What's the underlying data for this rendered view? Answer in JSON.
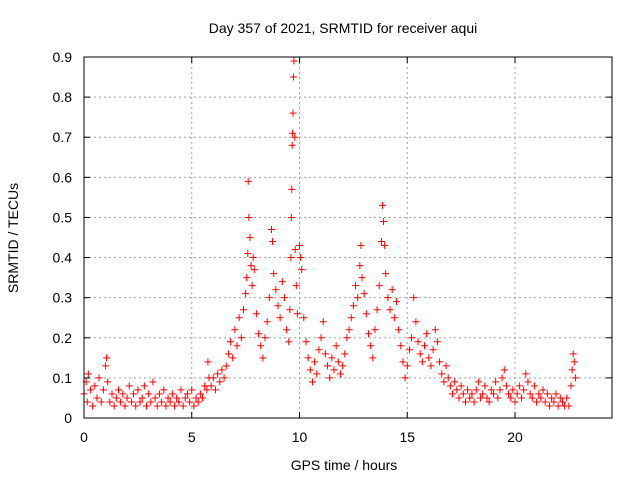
{
  "chart_data": {
    "type": "scatter",
    "title": "Day 357 of 2021, SRMTID for receiver aqui",
    "xlabel": "GPS time / hours",
    "ylabel": "SRMTID / TECUs",
    "xlim": [
      0,
      24.5
    ],
    "ylim": [
      0,
      0.9
    ],
    "xticks": [
      "0",
      "5",
      "10",
      "15",
      "20"
    ],
    "yticks": [
      "0",
      "0.1",
      "0.2",
      "0.3",
      "0.4",
      "0.5",
      "0.6",
      "0.7",
      "0.8",
      "0.9"
    ],
    "grid": true,
    "marker": "+",
    "marker_color": "#ff0000",
    "series": [
      {
        "name": "SRMTID",
        "points": [
          [
            0.0,
            0.06
          ],
          [
            0.1,
            0.09
          ],
          [
            0.15,
            0.04
          ],
          [
            0.2,
            0.11
          ],
          [
            0.3,
            0.07
          ],
          [
            0.4,
            0.03
          ],
          [
            0.5,
            0.08
          ],
          [
            0.6,
            0.05
          ],
          [
            0.7,
            0.1
          ],
          [
            0.8,
            0.04
          ],
          [
            0.9,
            0.07
          ],
          [
            1.0,
            0.13
          ],
          [
            1.05,
            0.15
          ],
          [
            1.1,
            0.09
          ],
          [
            1.2,
            0.04
          ],
          [
            1.3,
            0.06
          ],
          [
            1.4,
            0.03
          ],
          [
            1.5,
            0.05
          ],
          [
            1.6,
            0.07
          ],
          [
            1.7,
            0.04
          ],
          [
            1.8,
            0.06
          ],
          [
            1.9,
            0.03
          ],
          [
            2.0,
            0.05
          ],
          [
            2.1,
            0.08
          ],
          [
            2.2,
            0.04
          ],
          [
            2.3,
            0.06
          ],
          [
            2.4,
            0.03
          ],
          [
            2.5,
            0.07
          ],
          [
            2.6,
            0.04
          ],
          [
            2.7,
            0.05
          ],
          [
            2.8,
            0.08
          ],
          [
            2.9,
            0.03
          ],
          [
            3.0,
            0.06
          ],
          [
            3.1,
            0.04
          ],
          [
            3.2,
            0.09
          ],
          [
            3.3,
            0.05
          ],
          [
            3.4,
            0.03
          ],
          [
            3.5,
            0.06
          ],
          [
            3.6,
            0.04
          ],
          [
            3.7,
            0.07
          ],
          [
            3.8,
            0.03
          ],
          [
            3.9,
            0.05
          ],
          [
            4.0,
            0.04
          ],
          [
            4.1,
            0.06
          ],
          [
            4.2,
            0.03
          ],
          [
            4.3,
            0.05
          ],
          [
            4.4,
            0.04
          ],
          [
            4.5,
            0.07
          ],
          [
            4.6,
            0.03
          ],
          [
            4.7,
            0.05
          ],
          [
            4.8,
            0.06
          ],
          [
            4.9,
            0.04
          ],
          [
            5.0,
            0.07
          ],
          [
            5.1,
            0.03
          ],
          [
            5.2,
            0.05
          ],
          [
            5.3,
            0.04
          ],
          [
            5.4,
            0.06
          ],
          [
            5.5,
            0.05
          ],
          [
            5.6,
            0.08
          ],
          [
            5.7,
            0.07
          ],
          [
            5.75,
            0.14
          ],
          [
            5.8,
            0.1
          ],
          [
            5.9,
            0.08
          ],
          [
            6.0,
            0.1
          ],
          [
            6.1,
            0.07
          ],
          [
            6.2,
            0.11
          ],
          [
            6.3,
            0.09
          ],
          [
            6.4,
            0.12
          ],
          [
            6.5,
            0.1
          ],
          [
            6.6,
            0.13
          ],
          [
            6.7,
            0.16
          ],
          [
            6.8,
            0.19
          ],
          [
            6.9,
            0.15
          ],
          [
            7.0,
            0.22
          ],
          [
            7.1,
            0.18
          ],
          [
            7.2,
            0.25
          ],
          [
            7.3,
            0.2
          ],
          [
            7.4,
            0.27
          ],
          [
            7.5,
            0.31
          ],
          [
            7.55,
            0.35
          ],
          [
            7.6,
            0.41
          ],
          [
            7.62,
            0.59
          ],
          [
            7.65,
            0.5
          ],
          [
            7.7,
            0.45
          ],
          [
            7.75,
            0.38
          ],
          [
            7.8,
            0.33
          ],
          [
            7.85,
            0.4
          ],
          [
            7.9,
            0.37
          ],
          [
            8.0,
            0.26
          ],
          [
            8.1,
            0.21
          ],
          [
            8.2,
            0.18
          ],
          [
            8.3,
            0.15
          ],
          [
            8.4,
            0.2
          ],
          [
            8.5,
            0.24
          ],
          [
            8.6,
            0.3
          ],
          [
            8.7,
            0.47
          ],
          [
            8.75,
            0.44
          ],
          [
            8.8,
            0.36
          ],
          [
            8.9,
            0.32
          ],
          [
            9.0,
            0.28
          ],
          [
            9.1,
            0.25
          ],
          [
            9.2,
            0.34
          ],
          [
            9.3,
            0.3
          ],
          [
            9.4,
            0.22
          ],
          [
            9.5,
            0.19
          ],
          [
            9.55,
            0.27
          ],
          [
            9.6,
            0.4
          ],
          [
            9.62,
            0.5
          ],
          [
            9.64,
            0.57
          ],
          [
            9.66,
            0.68
          ],
          [
            9.68,
            0.71
          ],
          [
            9.7,
            0.76
          ],
          [
            9.72,
            0.85
          ],
          [
            9.74,
            0.89
          ],
          [
            9.78,
            0.7
          ],
          [
            9.8,
            0.42
          ],
          [
            9.85,
            0.33
          ],
          [
            9.9,
            0.26
          ],
          [
            10.0,
            0.43
          ],
          [
            10.05,
            0.4
          ],
          [
            10.1,
            0.37
          ],
          [
            10.2,
            0.25
          ],
          [
            10.3,
            0.19
          ],
          [
            10.4,
            0.15
          ],
          [
            10.5,
            0.12
          ],
          [
            10.6,
            0.09
          ],
          [
            10.7,
            0.14
          ],
          [
            10.8,
            0.11
          ],
          [
            10.9,
            0.17
          ],
          [
            11.0,
            0.2
          ],
          [
            11.1,
            0.24
          ],
          [
            11.2,
            0.16
          ],
          [
            11.3,
            0.13
          ],
          [
            11.4,
            0.1
          ],
          [
            11.5,
            0.15
          ],
          [
            11.6,
            0.12
          ],
          [
            11.7,
            0.18
          ],
          [
            11.8,
            0.14
          ],
          [
            11.9,
            0.11
          ],
          [
            12.0,
            0.13
          ],
          [
            12.1,
            0.16
          ],
          [
            12.2,
            0.2
          ],
          [
            12.3,
            0.22
          ],
          [
            12.4,
            0.25
          ],
          [
            12.5,
            0.28
          ],
          [
            12.6,
            0.33
          ],
          [
            12.7,
            0.3
          ],
          [
            12.8,
            0.38
          ],
          [
            12.85,
            0.43
          ],
          [
            12.9,
            0.35
          ],
          [
            13.0,
            0.31
          ],
          [
            13.1,
            0.26
          ],
          [
            13.2,
            0.21
          ],
          [
            13.3,
            0.18
          ],
          [
            13.4,
            0.15
          ],
          [
            13.5,
            0.22
          ],
          [
            13.6,
            0.27
          ],
          [
            13.7,
            0.33
          ],
          [
            13.8,
            0.44
          ],
          [
            13.85,
            0.53
          ],
          [
            13.9,
            0.49
          ],
          [
            13.95,
            0.43
          ],
          [
            14.0,
            0.36
          ],
          [
            14.1,
            0.3
          ],
          [
            14.2,
            0.27
          ],
          [
            14.3,
            0.32
          ],
          [
            14.4,
            0.25
          ],
          [
            14.5,
            0.29
          ],
          [
            14.6,
            0.22
          ],
          [
            14.7,
            0.18
          ],
          [
            14.8,
            0.14
          ],
          [
            14.9,
            0.1
          ],
          [
            15.0,
            0.13
          ],
          [
            15.1,
            0.17
          ],
          [
            15.2,
            0.2
          ],
          [
            15.3,
            0.3
          ],
          [
            15.4,
            0.24
          ],
          [
            15.5,
            0.19
          ],
          [
            15.6,
            0.16
          ],
          [
            15.7,
            0.14
          ],
          [
            15.8,
            0.18
          ],
          [
            15.9,
            0.21
          ],
          [
            16.0,
            0.15
          ],
          [
            16.1,
            0.13
          ],
          [
            16.2,
            0.17
          ],
          [
            16.3,
            0.22
          ],
          [
            16.4,
            0.19
          ],
          [
            16.5,
            0.14
          ],
          [
            16.6,
            0.11
          ],
          [
            16.7,
            0.09
          ],
          [
            16.8,
            0.13
          ],
          [
            16.9,
            0.1
          ],
          [
            17.0,
            0.08
          ],
          [
            17.1,
            0.06
          ],
          [
            17.2,
            0.09
          ],
          [
            17.3,
            0.07
          ],
          [
            17.4,
            0.05
          ],
          [
            17.5,
            0.08
          ],
          [
            17.6,
            0.06
          ],
          [
            17.7,
            0.04
          ],
          [
            17.8,
            0.07
          ],
          [
            17.9,
            0.05
          ],
          [
            18.0,
            0.06
          ],
          [
            18.1,
            0.04
          ],
          [
            18.2,
            0.07
          ],
          [
            18.3,
            0.09
          ],
          [
            18.4,
            0.05
          ],
          [
            18.5,
            0.06
          ],
          [
            18.6,
            0.08
          ],
          [
            18.7,
            0.05
          ],
          [
            18.8,
            0.04
          ],
          [
            18.9,
            0.07
          ],
          [
            19.0,
            0.06
          ],
          [
            19.1,
            0.09
          ],
          [
            19.2,
            0.05
          ],
          [
            19.3,
            0.07
          ],
          [
            19.4,
            0.1
          ],
          [
            19.5,
            0.12
          ],
          [
            19.6,
            0.08
          ],
          [
            19.7,
            0.06
          ],
          [
            19.8,
            0.05
          ],
          [
            19.9,
            0.07
          ],
          [
            20.0,
            0.04
          ],
          [
            20.1,
            0.06
          ],
          [
            20.2,
            0.08
          ],
          [
            20.3,
            0.05
          ],
          [
            20.4,
            0.07
          ],
          [
            20.5,
            0.11
          ],
          [
            20.6,
            0.09
          ],
          [
            20.7,
            0.06
          ],
          [
            20.8,
            0.05
          ],
          [
            20.9,
            0.08
          ],
          [
            21.0,
            0.04
          ],
          [
            21.1,
            0.06
          ],
          [
            21.2,
            0.05
          ],
          [
            21.3,
            0.07
          ],
          [
            21.4,
            0.04
          ],
          [
            21.5,
            0.06
          ],
          [
            21.6,
            0.03
          ],
          [
            21.7,
            0.05
          ],
          [
            21.8,
            0.04
          ],
          [
            21.9,
            0.06
          ],
          [
            22.0,
            0.03
          ],
          [
            22.1,
            0.05
          ],
          [
            22.2,
            0.04
          ],
          [
            22.3,
            0.03
          ],
          [
            22.4,
            0.05
          ],
          [
            22.5,
            0.03
          ],
          [
            22.6,
            0.08
          ],
          [
            22.65,
            0.12
          ],
          [
            22.7,
            0.16
          ],
          [
            22.75,
            0.14
          ],
          [
            22.8,
            0.1
          ]
        ]
      }
    ]
  }
}
